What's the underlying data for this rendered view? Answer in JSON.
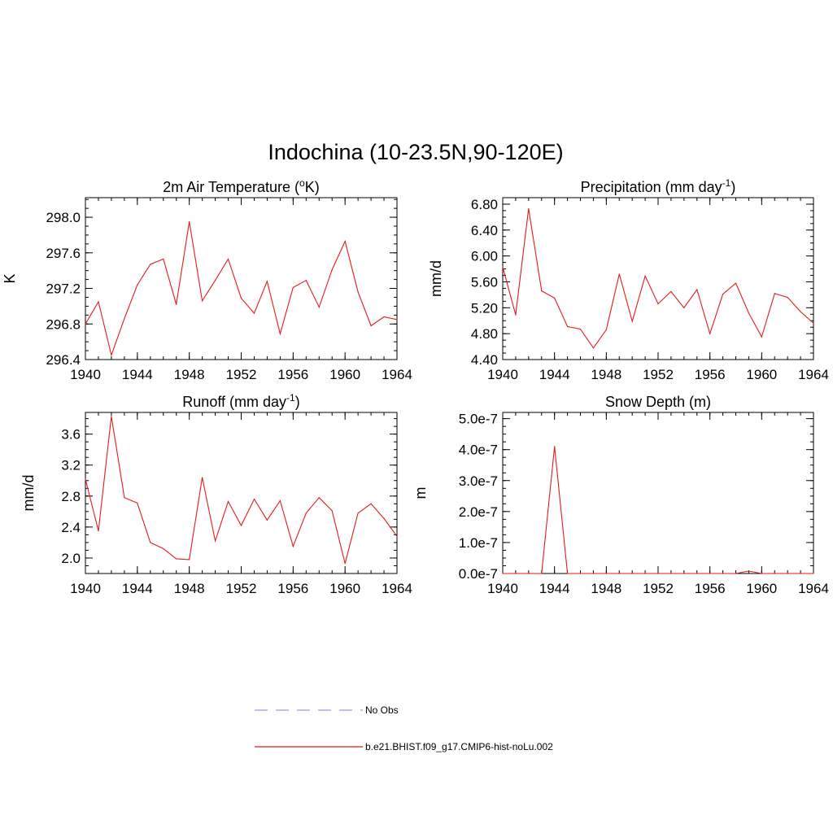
{
  "figure_title": "Indochina (10-23.5N,90-120E)",
  "colors": {
    "model": "#e41a1c",
    "obs": "#9999ee",
    "axis": "#000000"
  },
  "legend": [
    {
      "label": "No Obs",
      "style": "dashed",
      "color": "#9999ee"
    },
    {
      "label": "b.e21.BHIST.f09_g17.CMIP6-hist-noLu.002",
      "style": "solid",
      "color": "#e41a1c"
    }
  ],
  "chart_data": [
    {
      "type": "line",
      "title": "2m Air Temperature (",
      "title_sup": "o",
      "title_after": "K)",
      "xlabel": "",
      "ylabel": "K",
      "xlim": [
        1940,
        1964
      ],
      "ylim": [
        296.4,
        298.22
      ],
      "x_ticks": [
        1940,
        1944,
        1948,
        1952,
        1956,
        1960,
        1964
      ],
      "x_tick_labels": [
        "1940",
        "1944",
        "1948",
        "1952",
        "1956",
        "1960",
        "1964"
      ],
      "y_ticks": [
        296.4,
        296.8,
        297.2,
        297.6,
        298.0
      ],
      "y_tick_labels": [
        "296.4",
        "296.8",
        "297.2",
        "297.6",
        "298.0"
      ],
      "grid": false,
      "x": [
        1940,
        1941,
        1942,
        1943,
        1944,
        1945,
        1946,
        1947,
        1948,
        1949,
        1950,
        1951,
        1952,
        1953,
        1954,
        1955,
        1956,
        1957,
        1958,
        1959,
        1960,
        1961,
        1962,
        1963,
        1964
      ],
      "series": [
        {
          "values": [
            296.8,
            297.05,
            296.45,
            296.86,
            297.24,
            297.47,
            297.53,
            297.02,
            297.95,
            297.06,
            297.29,
            297.53,
            297.09,
            296.92,
            297.28,
            296.69,
            297.21,
            297.29,
            296.99,
            297.41,
            297.73,
            297.16,
            296.78,
            296.88,
            296.85
          ]
        }
      ]
    },
    {
      "type": "line",
      "title": "Precipitation (mm day",
      "title_sup": "-1",
      "title_after": ")",
      "xlabel": "",
      "ylabel": "mm/d",
      "xlim": [
        1940,
        1964
      ],
      "ylim": [
        4.4,
        6.9
      ],
      "x_ticks": [
        1940,
        1944,
        1948,
        1952,
        1956,
        1960,
        1964
      ],
      "x_tick_labels": [
        "1940",
        "1944",
        "1948",
        "1952",
        "1956",
        "1960",
        "1964"
      ],
      "y_ticks": [
        4.4,
        4.8,
        5.2,
        5.6,
        6.0,
        6.4,
        6.8
      ],
      "y_tick_labels": [
        "4.40",
        "4.80",
        "5.20",
        "5.60",
        "6.00",
        "6.40",
        "6.80"
      ],
      "grid": false,
      "x": [
        1940,
        1941,
        1942,
        1943,
        1944,
        1945,
        1946,
        1947,
        1948,
        1949,
        1950,
        1951,
        1952,
        1953,
        1954,
        1955,
        1956,
        1957,
        1958,
        1959,
        1960,
        1961,
        1962,
        1963,
        1964
      ],
      "series": [
        {
          "values": [
            5.83,
            5.09,
            6.73,
            5.46,
            5.35,
            4.91,
            4.87,
            4.58,
            4.86,
            5.72,
            4.99,
            5.69,
            5.26,
            5.45,
            5.2,
            5.48,
            4.8,
            5.41,
            5.58,
            5.12,
            4.75,
            5.42,
            5.36,
            5.14,
            4.96
          ]
        }
      ]
    },
    {
      "type": "line",
      "title": "Runoff (mm day",
      "title_sup": "-1",
      "title_after": ")",
      "xlabel": "",
      "ylabel": "mm/d",
      "xlim": [
        1940,
        1964
      ],
      "ylim": [
        1.8,
        3.88
      ],
      "x_ticks": [
        1940,
        1944,
        1948,
        1952,
        1956,
        1960,
        1964
      ],
      "x_tick_labels": [
        "1940",
        "1944",
        "1948",
        "1952",
        "1956",
        "1960",
        "1964"
      ],
      "y_ticks": [
        2.0,
        2.4,
        2.8,
        3.2,
        3.6
      ],
      "y_tick_labels": [
        "2.0",
        "2.4",
        "2.8",
        "3.2",
        "3.6"
      ],
      "grid": false,
      "x": [
        1940,
        1941,
        1942,
        1943,
        1944,
        1945,
        1946,
        1947,
        1948,
        1949,
        1950,
        1951,
        1952,
        1953,
        1954,
        1955,
        1956,
        1957,
        1958,
        1959,
        1960,
        1961,
        1962,
        1963,
        1964
      ],
      "series": [
        {
          "values": [
            3.02,
            2.35,
            3.83,
            2.78,
            2.71,
            2.2,
            2.12,
            1.99,
            1.98,
            3.04,
            2.22,
            2.73,
            2.42,
            2.76,
            2.49,
            2.74,
            2.15,
            2.58,
            2.78,
            2.61,
            1.93,
            2.58,
            2.7,
            2.51,
            2.28
          ]
        }
      ]
    },
    {
      "type": "line",
      "title": "Snow Depth (m)",
      "title_sup": "",
      "title_after": "",
      "xlabel": "",
      "ylabel": "m",
      "xlim": [
        1940,
        1964
      ],
      "ylim": [
        0,
        5.2e-07
      ],
      "x_ticks": [
        1940,
        1944,
        1948,
        1952,
        1956,
        1960,
        1964
      ],
      "x_tick_labels": [
        "1940",
        "1944",
        "1948",
        "1952",
        "1956",
        "1960",
        "1964"
      ],
      "y_ticks": [
        0,
        1e-07,
        2e-07,
        3e-07,
        4e-07,
        5e-07
      ],
      "y_tick_labels": [
        "0.0e-7",
        "1.0e-7",
        "2.0e-7",
        "3.0e-7",
        "4.0e-7",
        "5.0e-7"
      ],
      "grid": false,
      "x": [
        1940,
        1941,
        1942,
        1943,
        1944,
        1945,
        1946,
        1947,
        1948,
        1949,
        1950,
        1951,
        1952,
        1953,
        1954,
        1955,
        1956,
        1957,
        1958,
        1959,
        1960,
        1961,
        1962,
        1963,
        1964
      ],
      "series": [
        {
          "values": [
            0,
            0,
            0,
            0,
            4.1e-07,
            0,
            0,
            0,
            0,
            0,
            0,
            0,
            0,
            0,
            0,
            0,
            0,
            0,
            0,
            8e-09,
            0,
            0,
            0,
            0,
            0
          ]
        }
      ]
    }
  ]
}
